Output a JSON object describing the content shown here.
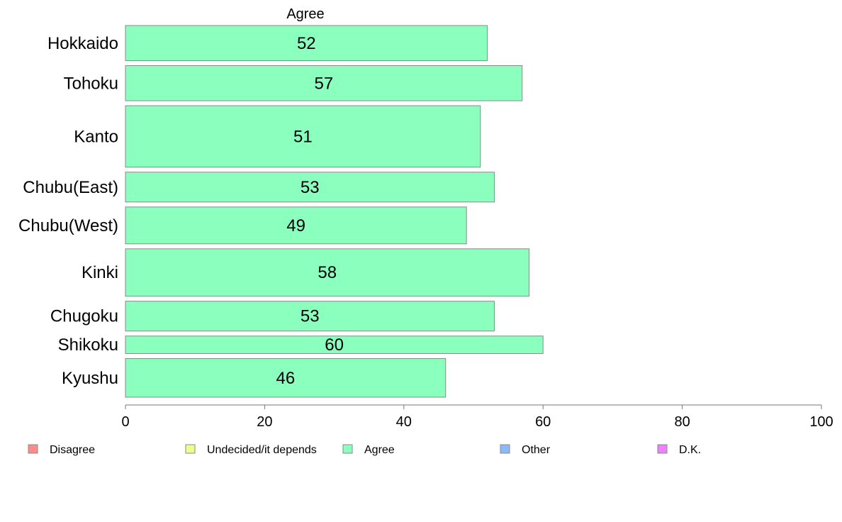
{
  "chart_data": {
    "type": "bar",
    "orientation": "horizontal",
    "top_label": "Agree",
    "categories": [
      "Hokkaido",
      "Tohoku",
      "Kanto",
      "Chubu(East)",
      "Chubu(West)",
      "Kinki",
      "Chugoku",
      "Shikoku",
      "Kyushu"
    ],
    "series": [
      {
        "name": "Agree",
        "values": [
          52,
          57,
          51,
          53,
          49,
          58,
          53,
          60,
          46
        ],
        "color": "#8affbe"
      }
    ],
    "relative_bar_widths": [
      1,
      1,
      1.75,
      0.85,
      1.05,
      1.35,
      0.85,
      0.5,
      1.1
    ],
    "xlim": [
      0,
      100
    ],
    "xticks": [
      0,
      20,
      40,
      60,
      80,
      100
    ],
    "grid": false,
    "legend_position": "bottom",
    "legend": [
      {
        "label": "Disagree",
        "color": "#ff8c8c"
      },
      {
        "label": "Undecided/it depends",
        "color": "#eeff8c"
      },
      {
        "label": "Agree",
        "color": "#8affbe"
      },
      {
        "label": "Other",
        "color": "#8cb8ff"
      },
      {
        "label": "D.K.",
        "color": "#ee80ff"
      }
    ]
  }
}
